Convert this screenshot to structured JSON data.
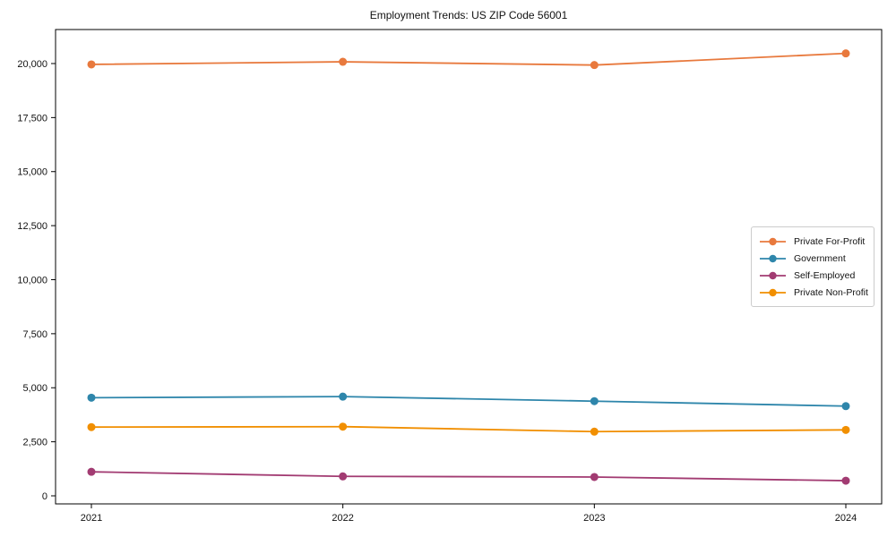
{
  "chart_data": {
    "type": "line",
    "title": "Employment Trends: US ZIP Code 56001",
    "xlabel": "",
    "ylabel": "",
    "categories": [
      "2021",
      "2022",
      "2023",
      "2024"
    ],
    "series": [
      {
        "name": "Private For-Profit",
        "color": "#E8793D",
        "values": [
          19960,
          20080,
          19930,
          20470
        ]
      },
      {
        "name": "Government",
        "color": "#2E86AB",
        "values": [
          4540,
          4590,
          4380,
          4150
        ]
      },
      {
        "name": "Self-Employed",
        "color": "#A23B72",
        "values": [
          1110,
          900,
          870,
          700
        ]
      },
      {
        "name": "Private Non-Profit",
        "color": "#F18F01",
        "values": [
          3180,
          3200,
          2970,
          3050
        ]
      }
    ],
    "y_ticks": [
      0,
      2500,
      5000,
      7500,
      10000,
      12500,
      15000,
      17500,
      20000
    ],
    "y_tick_labels": [
      "0",
      "2,500",
      "5,000",
      "7,500",
      "10,000",
      "12,500",
      "15,000",
      "17,500",
      "20,000"
    ],
    "ylim": [
      -373,
      21573
    ],
    "grid": false,
    "legend_position": "center-right",
    "axis_color": "#000000",
    "legend_border_color": "#cccccc"
  }
}
